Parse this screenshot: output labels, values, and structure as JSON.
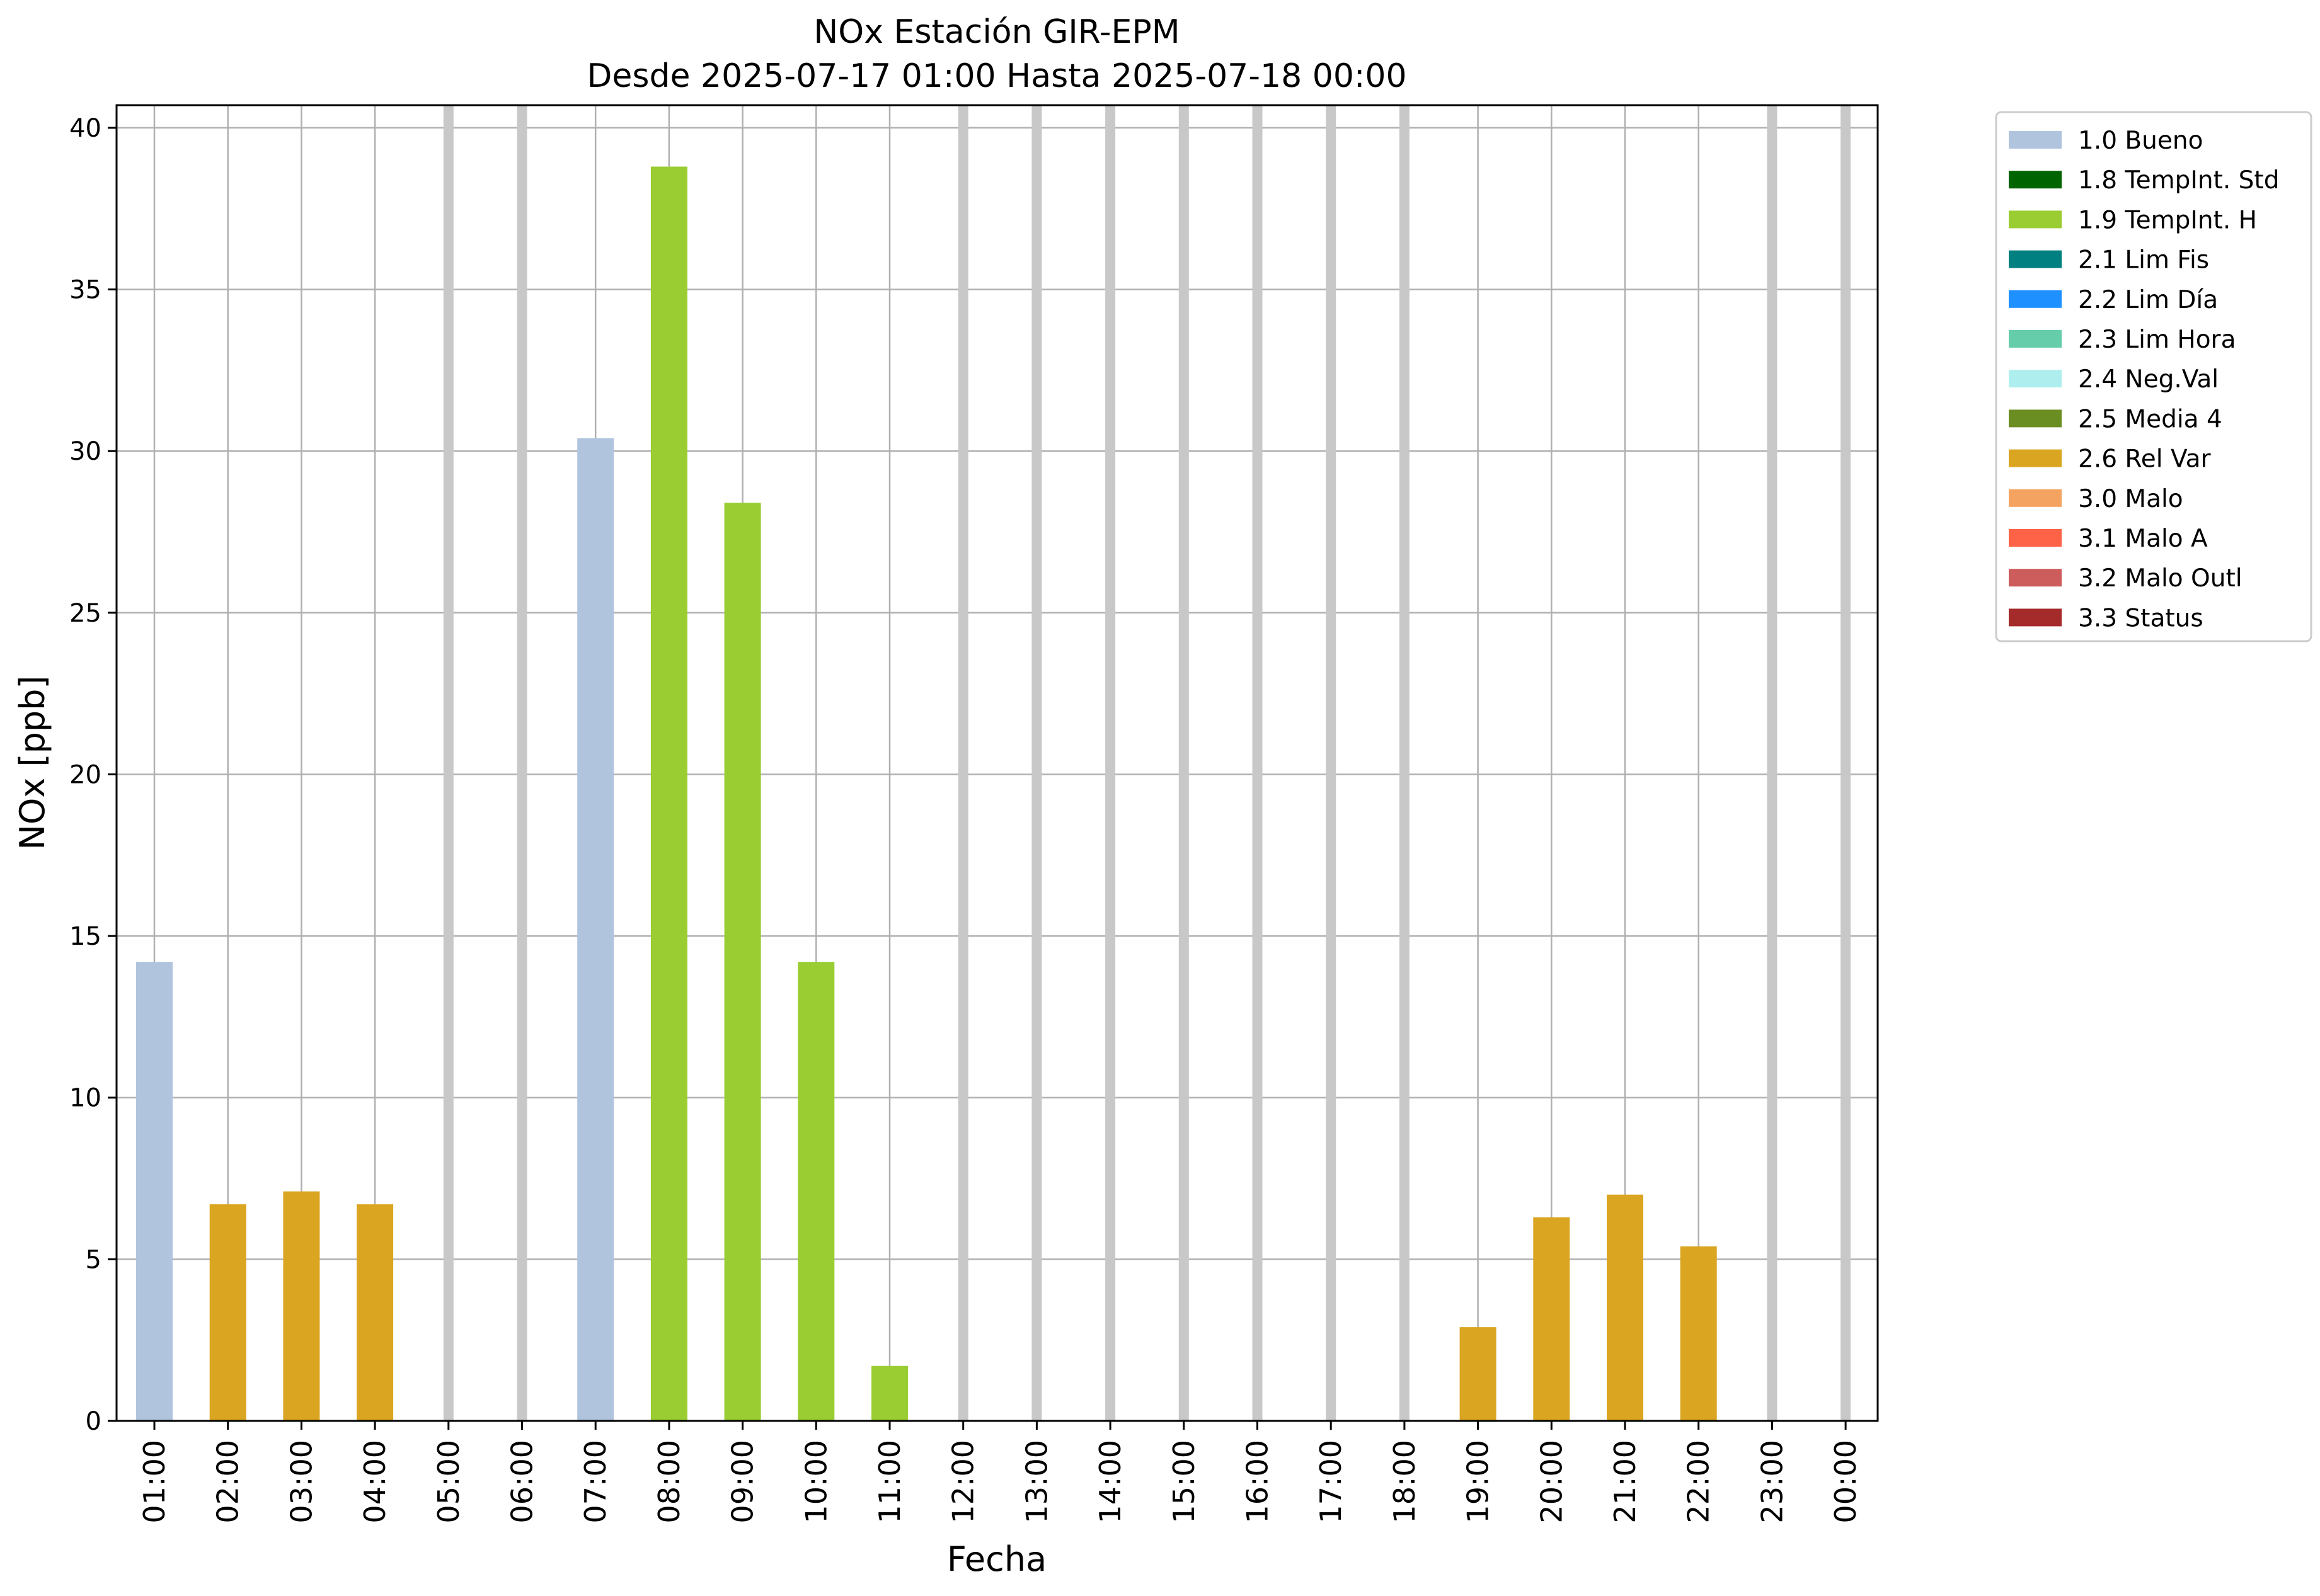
{
  "chart_data": {
    "type": "bar",
    "title": "NOx Estación GIR-EPM",
    "subtitle": "Desde 2025-07-17 01:00 Hasta 2025-07-18 00:00",
    "xlabel": "Fecha",
    "ylabel": "NOx [ppb]",
    "ylim": [
      0,
      40.7
    ],
    "yticks": [
      0,
      5,
      10,
      15,
      20,
      25,
      30,
      35,
      40
    ],
    "grid": true,
    "legend_position": "outside-top-right",
    "categories": [
      "01:00",
      "02:00",
      "03:00",
      "04:00",
      "05:00",
      "06:00",
      "07:00",
      "08:00",
      "09:00",
      "10:00",
      "11:00",
      "12:00",
      "13:00",
      "14:00",
      "15:00",
      "16:00",
      "17:00",
      "18:00",
      "19:00",
      "20:00",
      "21:00",
      "22:00",
      "23:00",
      "00:00"
    ],
    "values": [
      14.2,
      6.7,
      7.1,
      6.7,
      null,
      null,
      30.4,
      38.8,
      28.4,
      14.2,
      1.7,
      null,
      null,
      null,
      null,
      null,
      null,
      null,
      2.9,
      6.3,
      7.0,
      5.4,
      null,
      null
    ],
    "flags": [
      "1.0 Bueno",
      "2.6 Rel Var",
      "2.6 Rel Var",
      "2.6 Rel Var",
      null,
      null,
      "1.0 Bueno",
      "1.9 TempInt. H",
      "1.9 TempInt. H",
      "1.9 TempInt. H",
      "1.9 TempInt. H",
      null,
      null,
      null,
      null,
      null,
      null,
      null,
      "2.6 Rel Var",
      "2.6 Rel Var",
      "2.6 Rel Var",
      "2.6 Rel Var",
      null,
      null
    ],
    "missing_color": "#c8c8c8",
    "legend": [
      {
        "label": "1.0 Bueno",
        "color": "#b0c4de"
      },
      {
        "label": "1.8 TempInt. Std",
        "color": "#006400"
      },
      {
        "label": "1.9 TempInt. H",
        "color": "#9acd32"
      },
      {
        "label": "2.1 Lim Fis",
        "color": "#008080"
      },
      {
        "label": "2.2 Lim Día",
        "color": "#1e90ff"
      },
      {
        "label": "2.3 Lim Hora",
        "color": "#66cdaa"
      },
      {
        "label": "2.4 Neg.Val",
        "color": "#afeeee"
      },
      {
        "label": "2.5 Media 4",
        "color": "#6b8e23"
      },
      {
        "label": "2.6 Rel Var",
        "color": "#daa520"
      },
      {
        "label": "3.0 Malo",
        "color": "#f4a460"
      },
      {
        "label": "3.1 Malo A",
        "color": "#ff6347"
      },
      {
        "label": "3.2 Malo Outl",
        "color": "#cd5c5c"
      },
      {
        "label": "3.3 Status",
        "color": "#a52a2a"
      }
    ]
  }
}
